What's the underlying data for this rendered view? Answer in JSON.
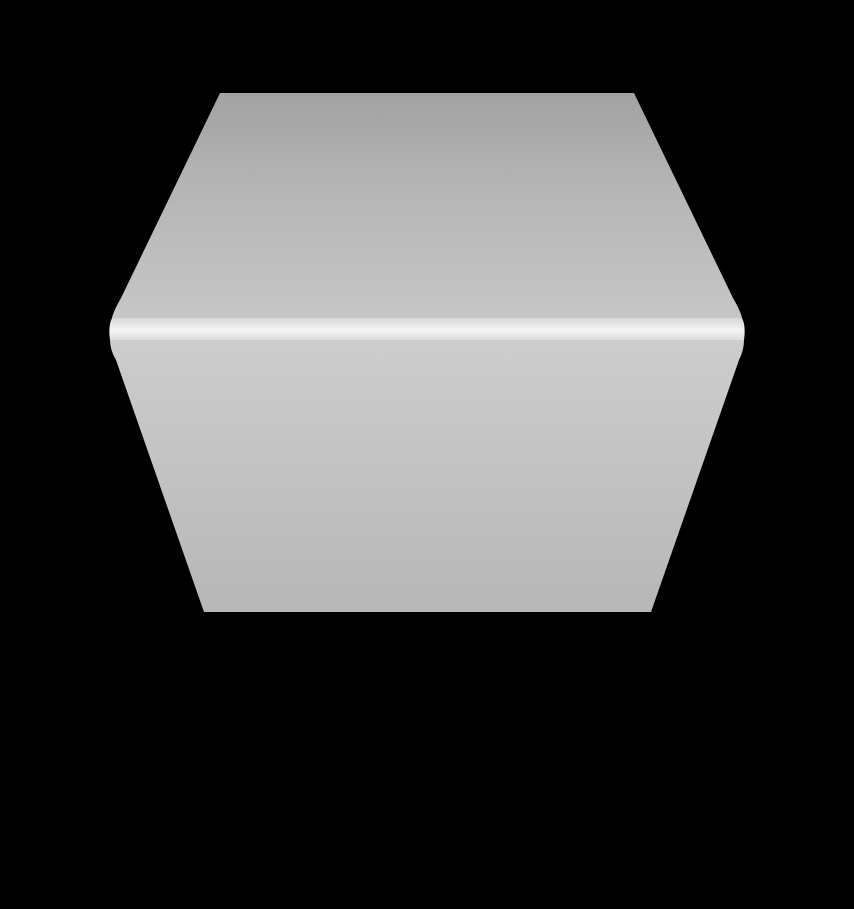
{
  "scene": {
    "background_color": "#000000",
    "object": {
      "kind": "rounded hexagonal prism panel",
      "top_face_colors": [
        "#a2a2a2",
        "#b6b6b6",
        "#c6c6c6"
      ],
      "edge_highlight_colors": [
        "#d8d8d8",
        "#f4f4f4",
        "#dcdcdc"
      ],
      "bottom_face_colors": [
        "#cdcdcd",
        "#c2c2c2",
        "#b7b7b7"
      ]
    }
  }
}
